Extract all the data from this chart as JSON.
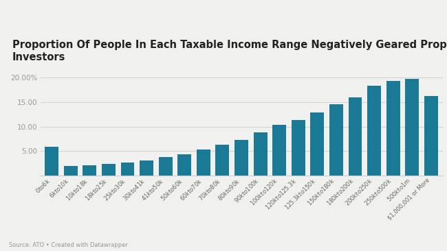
{
  "title_line1": "Proportion Of People In Each Taxable Income Range Negatively Geared Property",
  "title_line2": "Investors",
  "categories": [
    "$0 to $6k",
    "$6k to $10k",
    "$10k to $18k",
    "$18k to $25k",
    "$25k to $30k",
    "$30k to $41k",
    "$41k to $50k",
    "$50k to $60k",
    "$60k to $70k",
    "$70k to $80k",
    "$80k to $90k",
    "$90k to $100k",
    "$100k to $120k",
    "$120k to $125.3k",
    "$125.3k to $150k",
    "$150k to $180k",
    "$180k to $200k",
    "$200k to $250k",
    "$250k to $500k",
    "$500k to $1m",
    "$1,000,001 or More"
  ],
  "values": [
    5.9,
    2.0,
    2.1,
    2.4,
    2.7,
    3.1,
    3.8,
    4.4,
    5.3,
    6.3,
    7.3,
    8.9,
    10.4,
    11.3,
    12.9,
    14.5,
    16.0,
    18.3,
    19.3,
    19.7,
    16.3
  ],
  "bar_color": "#1a7a96",
  "background_color": "#f0f0ee",
  "grid_color": "#cccccc",
  "title_fontsize": 10.5,
  "ylim": [
    0,
    22
  ],
  "yticks": [
    5.0,
    10.0,
    15.0,
    20.0
  ],
  "ytick_labels": [
    "5.00",
    "10.00",
    "15.00",
    "20.00%"
  ],
  "source_text": "Source: ATO • Created with Datawrapper"
}
